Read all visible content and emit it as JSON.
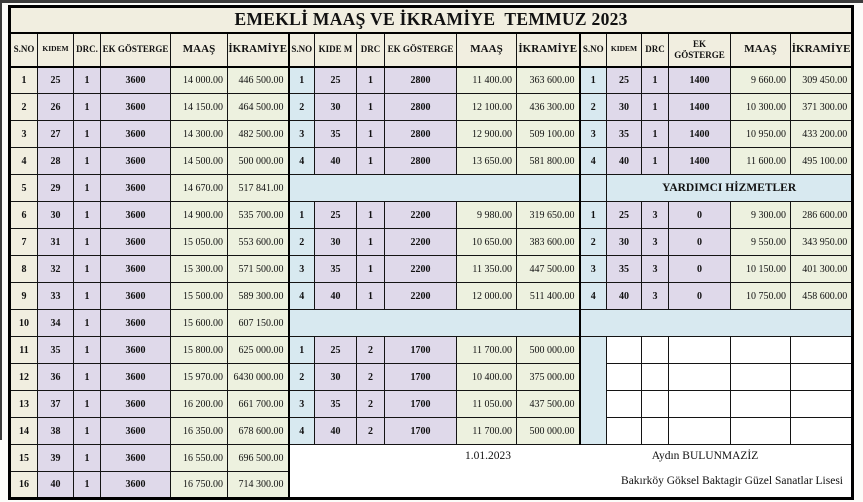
{
  "title": "EMEKLİ MAAŞ VE İKRAMİYE  TEMMUZ 2023",
  "colors": {
    "cream": "#f1eee0",
    "lav": "#dfd9ea",
    "grn": "#edf1df",
    "blue": "#d8e9f0",
    "border": "#141414"
  },
  "footer": {
    "date": "1.01.2023",
    "name": "Aydın BULUNMAZİZ",
    "school": "Bakırköy Göksel Baktagir Güzel Sanatlar Lisesi"
  },
  "section_titles": {
    "yardimci": "YARDIMCI HİZMETLER"
  },
  "grid": [
    [
      {
        "t": "S.NO",
        "k": "hdr"
      },
      {
        "t": "KIDEM",
        "k": "hdr",
        "v": "sm"
      },
      {
        "t": "DRC.",
        "k": "hdr"
      },
      {
        "t": "EK GÖSTERGE",
        "k": "hdr"
      },
      {
        "t": "MAAŞ",
        "k": "hdr",
        "v": "big"
      },
      {
        "t": "İKRAMİYE",
        "k": "hdr",
        "v": "big"
      },
      {
        "t": "S.NO",
        "k": "hdr",
        "gl": 1
      },
      {
        "t": "KIDE M",
        "k": "hdr"
      },
      {
        "t": "DRC",
        "k": "hdr"
      },
      {
        "t": "EK GÖSTERGE",
        "k": "hdr"
      },
      {
        "t": "MAAŞ",
        "k": "hdr",
        "v": "big"
      },
      {
        "t": "İKRAMİYE",
        "k": "hdr",
        "v": "big"
      },
      {
        "t": "S.NO",
        "k": "hdr",
        "gl": 1
      },
      {
        "t": "KIDEM",
        "k": "hdr",
        "v": "sm"
      },
      {
        "t": "DRC",
        "k": "hdr"
      },
      {
        "t": "EK GÖSTERGE",
        "k": "hdr"
      },
      {
        "t": "MAAŞ",
        "k": "hdr",
        "v": "big"
      },
      {
        "t": "İKRAMİYE",
        "k": "hdr",
        "v": "big"
      }
    ],
    [
      {
        "t": "1",
        "k": "cr"
      },
      {
        "t": "25",
        "k": "lv"
      },
      {
        "t": "1",
        "k": "lv"
      },
      {
        "t": "3600",
        "k": "lv"
      },
      {
        "t": "14 000.00",
        "k": "gr"
      },
      {
        "t": "446 500.00",
        "k": "gr"
      },
      {
        "t": "1",
        "k": "bl",
        "gl": 1
      },
      {
        "t": "25",
        "k": "lv"
      },
      {
        "t": "1",
        "k": "lv"
      },
      {
        "t": "2800",
        "k": "lv"
      },
      {
        "t": "11 400.00",
        "k": "gr"
      },
      {
        "t": "363 600.00",
        "k": "gr"
      },
      {
        "t": "1",
        "k": "bl",
        "gl": 1
      },
      {
        "t": "25",
        "k": "lv"
      },
      {
        "t": "1",
        "k": "lv"
      },
      {
        "t": "1400",
        "k": "lv"
      },
      {
        "t": "9 660.00",
        "k": "gr"
      },
      {
        "t": "309 450.00",
        "k": "gr"
      }
    ],
    [
      {
        "t": "2",
        "k": "cr"
      },
      {
        "t": "26",
        "k": "lv"
      },
      {
        "t": "1",
        "k": "lv"
      },
      {
        "t": "3600",
        "k": "lv"
      },
      {
        "t": "14 150.00",
        "k": "gr"
      },
      {
        "t": "464 500.00",
        "k": "gr"
      },
      {
        "t": "2",
        "k": "bl",
        "gl": 1
      },
      {
        "t": "30",
        "k": "lv"
      },
      {
        "t": "1",
        "k": "lv"
      },
      {
        "t": "2800",
        "k": "lv"
      },
      {
        "t": "12 100.00",
        "k": "gr"
      },
      {
        "t": "436 300.00",
        "k": "gr"
      },
      {
        "t": "2",
        "k": "bl",
        "gl": 1
      },
      {
        "t": "30",
        "k": "lv"
      },
      {
        "t": "1",
        "k": "lv"
      },
      {
        "t": "1400",
        "k": "lv"
      },
      {
        "t": "10 300.00",
        "k": "gr"
      },
      {
        "t": "371 300.00",
        "k": "gr"
      }
    ],
    [
      {
        "t": "3",
        "k": "cr"
      },
      {
        "t": "27",
        "k": "lv"
      },
      {
        "t": "1",
        "k": "lv"
      },
      {
        "t": "3600",
        "k": "lv"
      },
      {
        "t": "14 300.00",
        "k": "gr"
      },
      {
        "t": "482 500.00",
        "k": "gr"
      },
      {
        "t": "3",
        "k": "bl",
        "gl": 1
      },
      {
        "t": "35",
        "k": "lv"
      },
      {
        "t": "1",
        "k": "lv"
      },
      {
        "t": "2800",
        "k": "lv"
      },
      {
        "t": "12 900.00",
        "k": "gr"
      },
      {
        "t": "509 100.00",
        "k": "gr"
      },
      {
        "t": "3",
        "k": "bl",
        "gl": 1
      },
      {
        "t": "35",
        "k": "lv"
      },
      {
        "t": "1",
        "k": "lv"
      },
      {
        "t": "1400",
        "k": "lv"
      },
      {
        "t": "10 950.00",
        "k": "gr"
      },
      {
        "t": "433 200.00",
        "k": "gr"
      }
    ],
    [
      {
        "t": "4",
        "k": "cr"
      },
      {
        "t": "28",
        "k": "lv"
      },
      {
        "t": "1",
        "k": "lv"
      },
      {
        "t": "3600",
        "k": "lv"
      },
      {
        "t": "14 500.00",
        "k": "gr"
      },
      {
        "t": "500 000.00",
        "k": "gr"
      },
      {
        "t": "4",
        "k": "bl",
        "gl": 1
      },
      {
        "t": "40",
        "k": "lv"
      },
      {
        "t": "1",
        "k": "lv"
      },
      {
        "t": "2800",
        "k": "lv"
      },
      {
        "t": "13 650.00",
        "k": "gr"
      },
      {
        "t": "581 800.00",
        "k": "gr"
      },
      {
        "t": "4",
        "k": "bl",
        "gl": 1
      },
      {
        "t": "40",
        "k": "lv"
      },
      {
        "t": "1",
        "k": "lv"
      },
      {
        "t": "1400",
        "k": "lv"
      },
      {
        "t": "11 600.00",
        "k": "gr"
      },
      {
        "t": "495 100.00",
        "k": "gr"
      }
    ],
    [
      {
        "t": "5",
        "k": "cr"
      },
      {
        "t": "29",
        "k": "lv"
      },
      {
        "t": "1",
        "k": "lv"
      },
      {
        "t": "3600",
        "k": "lv"
      },
      {
        "t": "14 670.00",
        "k": "gr"
      },
      {
        "t": "517 841.00",
        "k": "gr"
      },
      {
        "t": "",
        "k": "sp",
        "cs": 6,
        "gl": 1
      },
      {
        "t": "",
        "k": "bl",
        "gl": 1
      },
      {
        "t": "YARDIMCI HİZMETLER",
        "k": "yh",
        "cs": 5
      }
    ],
    [
      {
        "t": "6",
        "k": "cr"
      },
      {
        "t": "30",
        "k": "lv"
      },
      {
        "t": "1",
        "k": "lv"
      },
      {
        "t": "3600",
        "k": "lv"
      },
      {
        "t": "14 900.00",
        "k": "gr"
      },
      {
        "t": "535 700.00",
        "k": "gr"
      },
      {
        "t": "1",
        "k": "bl",
        "gl": 1
      },
      {
        "t": "25",
        "k": "lv"
      },
      {
        "t": "1",
        "k": "lv"
      },
      {
        "t": "2200",
        "k": "lv"
      },
      {
        "t": "9 980.00",
        "k": "gr"
      },
      {
        "t": "319 650.00",
        "k": "gr"
      },
      {
        "t": "1",
        "k": "bl",
        "gl": 1
      },
      {
        "t": "25",
        "k": "lv"
      },
      {
        "t": "3",
        "k": "lv"
      },
      {
        "t": "0",
        "k": "lv"
      },
      {
        "t": "9 300.00",
        "k": "gr"
      },
      {
        "t": "286 600.00",
        "k": "gr"
      }
    ],
    [
      {
        "t": "7",
        "k": "cr"
      },
      {
        "t": "31",
        "k": "lv"
      },
      {
        "t": "1",
        "k": "lv"
      },
      {
        "t": "3600",
        "k": "lv"
      },
      {
        "t": "15 050.00",
        "k": "gr"
      },
      {
        "t": "553 600.00",
        "k": "gr"
      },
      {
        "t": "2",
        "k": "bl",
        "gl": 1
      },
      {
        "t": "30",
        "k": "lv"
      },
      {
        "t": "1",
        "k": "lv"
      },
      {
        "t": "2200",
        "k": "lv"
      },
      {
        "t": "10 650.00",
        "k": "gr"
      },
      {
        "t": "383 600.00",
        "k": "gr"
      },
      {
        "t": "2",
        "k": "bl",
        "gl": 1
      },
      {
        "t": "30",
        "k": "lv"
      },
      {
        "t": "3",
        "k": "lv"
      },
      {
        "t": "0",
        "k": "lv"
      },
      {
        "t": "9 550.00",
        "k": "gr"
      },
      {
        "t": "343 950.00",
        "k": "gr"
      }
    ],
    [
      {
        "t": "8",
        "k": "cr"
      },
      {
        "t": "32",
        "k": "lv"
      },
      {
        "t": "1",
        "k": "lv"
      },
      {
        "t": "3600",
        "k": "lv"
      },
      {
        "t": "15 300.00",
        "k": "gr"
      },
      {
        "t": "571 500.00",
        "k": "gr"
      },
      {
        "t": "3",
        "k": "bl",
        "gl": 1
      },
      {
        "t": "35",
        "k": "lv"
      },
      {
        "t": "1",
        "k": "lv"
      },
      {
        "t": "2200",
        "k": "lv"
      },
      {
        "t": "11 350.00",
        "k": "gr"
      },
      {
        "t": "447 500.00",
        "k": "gr"
      },
      {
        "t": "3",
        "k": "bl",
        "gl": 1
      },
      {
        "t": "35",
        "k": "lv"
      },
      {
        "t": "3",
        "k": "lv"
      },
      {
        "t": "0",
        "k": "lv"
      },
      {
        "t": "10 150.00",
        "k": "gr"
      },
      {
        "t": "401 300.00",
        "k": "gr"
      }
    ],
    [
      {
        "t": "9",
        "k": "cr"
      },
      {
        "t": "33",
        "k": "lv"
      },
      {
        "t": "1",
        "k": "lv"
      },
      {
        "t": "3600",
        "k": "lv"
      },
      {
        "t": "15 500.00",
        "k": "gr"
      },
      {
        "t": "589 300.00",
        "k": "gr"
      },
      {
        "t": "4",
        "k": "bl",
        "gl": 1
      },
      {
        "t": "40",
        "k": "lv"
      },
      {
        "t": "1",
        "k": "lv"
      },
      {
        "t": "2200",
        "k": "lv"
      },
      {
        "t": "12 000.00",
        "k": "gr"
      },
      {
        "t": "511 400.00",
        "k": "gr"
      },
      {
        "t": "4",
        "k": "bl",
        "gl": 1
      },
      {
        "t": "40",
        "k": "lv"
      },
      {
        "t": "3",
        "k": "lv"
      },
      {
        "t": "0",
        "k": "lv"
      },
      {
        "t": "10 750.00",
        "k": "gr"
      },
      {
        "t": "458 600.00",
        "k": "gr"
      }
    ],
    [
      {
        "t": "10",
        "k": "cr"
      },
      {
        "t": "34",
        "k": "lv"
      },
      {
        "t": "1",
        "k": "lv"
      },
      {
        "t": "3600",
        "k": "lv"
      },
      {
        "t": "15 600.00",
        "k": "gr"
      },
      {
        "t": "607 150.00",
        "k": "gr"
      },
      {
        "t": "",
        "k": "sp",
        "cs": 6,
        "gl": 1
      },
      {
        "t": "",
        "k": "sp",
        "cs": 6,
        "gl": 1
      }
    ],
    [
      {
        "t": "11",
        "k": "cr"
      },
      {
        "t": "35",
        "k": "lv"
      },
      {
        "t": "1",
        "k": "lv"
      },
      {
        "t": "3600",
        "k": "lv"
      },
      {
        "t": "15 800.00",
        "k": "gr"
      },
      {
        "t": "625 000.00",
        "k": "gr"
      },
      {
        "t": "1",
        "k": "bl",
        "gl": 1
      },
      {
        "t": "25",
        "k": "lv"
      },
      {
        "t": "2",
        "k": "lv"
      },
      {
        "t": "1700",
        "k": "lv"
      },
      {
        "t": "11 700.00",
        "k": "gr"
      },
      {
        "t": "500 000.00",
        "k": "gr"
      },
      {
        "t": "",
        "k": "bl",
        "gl": 1,
        "rs": 4
      },
      {
        "t": "",
        "k": "wh"
      },
      {
        "t": "",
        "k": "wh"
      },
      {
        "t": "",
        "k": "wh"
      },
      {
        "t": "",
        "k": "wh"
      },
      {
        "t": "",
        "k": "wh"
      }
    ],
    [
      {
        "t": "12",
        "k": "cr"
      },
      {
        "t": "36",
        "k": "lv"
      },
      {
        "t": "1",
        "k": "lv"
      },
      {
        "t": "3600",
        "k": "lv"
      },
      {
        "t": "15 970.00",
        "k": "gr"
      },
      {
        "t": "6430 000.00",
        "k": "gr"
      },
      {
        "t": "2",
        "k": "bl",
        "gl": 1
      },
      {
        "t": "30",
        "k": "lv"
      },
      {
        "t": "2",
        "k": "lv"
      },
      {
        "t": "1700",
        "k": "lv"
      },
      {
        "t": "10 400.00",
        "k": "gr"
      },
      {
        "t": "375 000.00",
        "k": "gr"
      },
      {
        "t": "",
        "k": "wh"
      },
      {
        "t": "",
        "k": "wh"
      },
      {
        "t": "",
        "k": "wh"
      },
      {
        "t": "",
        "k": "wh"
      },
      {
        "t": "",
        "k": "wh"
      }
    ],
    [
      {
        "t": "13",
        "k": "cr"
      },
      {
        "t": "37",
        "k": "lv"
      },
      {
        "t": "1",
        "k": "lv"
      },
      {
        "t": "3600",
        "k": "lv"
      },
      {
        "t": "16 200.00",
        "k": "gr"
      },
      {
        "t": "661 700.00",
        "k": "gr"
      },
      {
        "t": "3",
        "k": "bl",
        "gl": 1
      },
      {
        "t": "35",
        "k": "lv"
      },
      {
        "t": "2",
        "k": "lv"
      },
      {
        "t": "1700",
        "k": "lv"
      },
      {
        "t": "11 050.00",
        "k": "gr"
      },
      {
        "t": "437 500.00",
        "k": "gr"
      },
      {
        "t": "",
        "k": "wh"
      },
      {
        "t": "",
        "k": "wh"
      },
      {
        "t": "",
        "k": "wh"
      },
      {
        "t": "",
        "k": "wh"
      },
      {
        "t": "",
        "k": "wh"
      }
    ],
    [
      {
        "t": "14",
        "k": "cr"
      },
      {
        "t": "38",
        "k": "lv"
      },
      {
        "t": "1",
        "k": "lv"
      },
      {
        "t": "3600",
        "k": "lv"
      },
      {
        "t": "16 350.00",
        "k": "gr"
      },
      {
        "t": "678 600.00",
        "k": "gr"
      },
      {
        "t": "4",
        "k": "bl",
        "gl": 1
      },
      {
        "t": "40",
        "k": "lv"
      },
      {
        "t": "2",
        "k": "lv"
      },
      {
        "t": "1700",
        "k": "lv"
      },
      {
        "t": "11 700.00",
        "k": "gr"
      },
      {
        "t": "500 000.00",
        "k": "gr"
      },
      {
        "t": "",
        "k": "wh"
      },
      {
        "t": "",
        "k": "wh"
      },
      {
        "t": "",
        "k": "wh"
      },
      {
        "t": "",
        "k": "wh"
      },
      {
        "t": "",
        "k": "wh"
      }
    ],
    [
      {
        "t": "15",
        "k": "cr"
      },
      {
        "t": "39",
        "k": "lv"
      },
      {
        "t": "1",
        "k": "lv"
      },
      {
        "t": "3600",
        "k": "lv"
      },
      {
        "t": "16 550.00",
        "k": "gr"
      },
      {
        "t": "696 500.00",
        "k": "gr"
      },
      {
        "t": "",
        "k": "ft",
        "cs": 12,
        "rs": 2,
        "gl": 1
      }
    ],
    [
      {
        "t": "16",
        "k": "cr"
      },
      {
        "t": "40",
        "k": "lv"
      },
      {
        "t": "1",
        "k": "lv"
      },
      {
        "t": "3600",
        "k": "lv"
      },
      {
        "t": "16 750.00",
        "k": "gr"
      },
      {
        "t": "714 300.00",
        "k": "gr"
      }
    ]
  ]
}
